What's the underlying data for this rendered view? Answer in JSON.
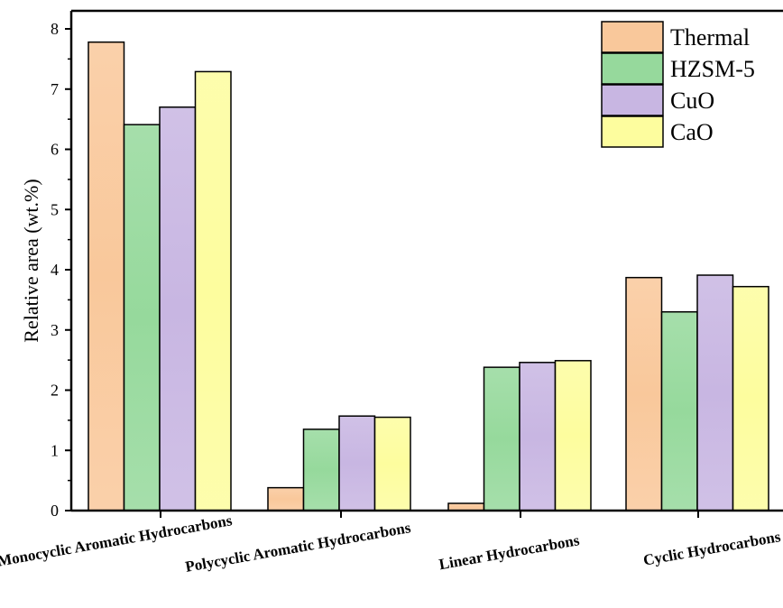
{
  "chart_data": {
    "type": "bar",
    "title": "",
    "xlabel": "",
    "ylabel": "Relative area (wt.%)",
    "ylim": [
      0,
      8.3
    ],
    "yticks": [
      0,
      1,
      2,
      3,
      4,
      5,
      6,
      7,
      8
    ],
    "grid": false,
    "legend_position": "top-right",
    "categories": [
      "Monocyclic Aromatic Hydrocarbons",
      "Polycyclic Aromatic Hydrocarbons",
      "Linear Hydrocarbons",
      "Cyclic Hydrocarbons"
    ],
    "series": [
      {
        "name": "Thermal",
        "color": "#F9C89B",
        "values": [
          7.78,
          0.38,
          0.12,
          3.87
        ]
      },
      {
        "name": "HZSM-5",
        "color": "#96D99C",
        "values": [
          6.41,
          1.35,
          2.38,
          3.3
        ]
      },
      {
        "name": "CuO",
        "color": "#C8B6E2",
        "values": [
          6.7,
          1.57,
          2.46,
          3.91
        ]
      },
      {
        "name": "CaO",
        "color": "#FDFD9E",
        "values": [
          7.29,
          1.55,
          2.49,
          3.72
        ]
      }
    ]
  }
}
